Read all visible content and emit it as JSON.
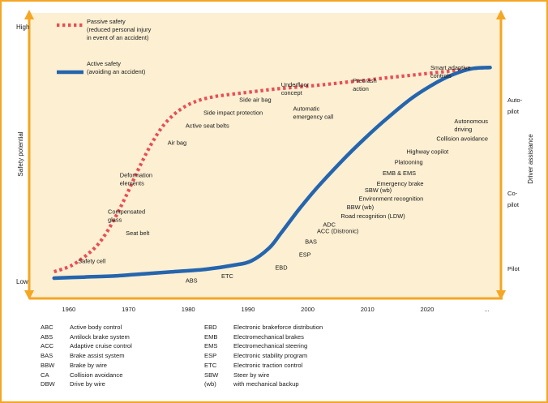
{
  "colors": {
    "frame": "#f5a623",
    "plot_background": "#fcefd2",
    "passive_series": "#e94e55",
    "active_series": "#2565ae",
    "axis_arrow": "#f5a623",
    "text": "#1a1a1a"
  },
  "chart_data": {
    "type": "line",
    "title": "",
    "xlabel": "",
    "ylabel": "Safety potential",
    "y_ticks": [
      "High",
      "Low"
    ],
    "right_axis_label": "Driver assistance",
    "right_axis_ticks": [
      "Autopilot",
      "Co-pilot",
      "Pilot"
    ],
    "x_ticks": [
      "1960",
      "1970",
      "1980",
      "1990",
      "2000",
      "2010",
      "2020",
      "..."
    ],
    "xlim": [
      1955,
      2031
    ],
    "ylim": [
      0,
      100
    ],
    "grid": false,
    "legend_position": "top-left",
    "series": [
      {
        "name": "Passive safety (reduced personal injury in event of an accident)",
        "legend_lines": [
          "Passive safety",
          "(reduced personal injury",
          "in event of an accident)"
        ],
        "style": "dotted",
        "color": "#e94e55",
        "x": [
          1957,
          1960,
          1963,
          1965,
          1967,
          1969,
          1971,
          1973,
          1975,
          1977,
          1979,
          1981,
          1983,
          1985,
          1988,
          1991,
          1994,
          1998,
          2002,
          2007,
          2012,
          2017,
          2022,
          2027,
          2030
        ],
        "y": [
          3,
          6,
          12,
          18,
          27,
          38,
          50,
          61,
          70,
          76,
          80,
          82.5,
          84,
          85,
          86,
          87,
          88,
          89,
          90,
          91.5,
          93,
          94.5,
          96,
          97.5,
          98
        ]
      },
      {
        "name": "Active safety (avoiding an accident)",
        "legend_lines": [
          "Active safety",
          "(avoiding an accident)"
        ],
        "style": "solid",
        "color": "#2565ae",
        "x": [
          1957,
          1962,
          1967,
          1972,
          1977,
          1982,
          1987,
          1990,
          1993,
          1995,
          1998,
          2001,
          2005,
          2009,
          2013,
          2017,
          2021,
          2024,
          2027,
          2030
        ],
        "y": [
          0,
          0.5,
          1,
          2,
          3,
          4,
          6,
          8,
          14,
          21,
          32,
          42,
          54,
          65,
          75,
          84,
          91,
          95,
          97.5,
          98
        ]
      }
    ],
    "annotations_passive": [
      {
        "text": [
          "Safety cell"
        ],
        "x": 1961,
        "y": 7
      },
      {
        "text": [
          "Seat belt"
        ],
        "x": 1969,
        "y": 20
      },
      {
        "text": [
          "Compensated",
          "glass"
        ],
        "x": 1966,
        "y": 30
      },
      {
        "text": [
          "Deformation",
          "elements"
        ],
        "x": 1968,
        "y": 47
      },
      {
        "text": [
          "Air bag"
        ],
        "x": 1976,
        "y": 62
      },
      {
        "text": [
          "Active seat belts"
        ],
        "x": 1979,
        "y": 70
      },
      {
        "text": [
          "Side impact protection"
        ],
        "x": 1982,
        "y": 76
      },
      {
        "text": [
          "Side air bag"
        ],
        "x": 1988,
        "y": 82
      },
      {
        "text": [
          "Underfloor",
          "concept"
        ],
        "x": 1995,
        "y": 89
      },
      {
        "text": [
          "Precrash",
          "action"
        ],
        "x": 2007,
        "y": 91
      },
      {
        "text": [
          "Smart adaptive",
          "controls"
        ],
        "x": 2020,
        "y": 97
      }
    ],
    "annotations_active": [
      {
        "text": [
          "ABS"
        ],
        "x": 1979,
        "y": -2
      },
      {
        "text": [
          "ETC"
        ],
        "x": 1985,
        "y": 0
      },
      {
        "text": [
          "EBD"
        ],
        "x": 1994,
        "y": 4
      },
      {
        "text": [
          "ESP"
        ],
        "x": 1998,
        "y": 10
      },
      {
        "text": [
          "BAS"
        ],
        "x": 1999,
        "y": 16
      },
      {
        "text": [
          "ACC (Distronic)"
        ],
        "x": 2001,
        "y": 21
      },
      {
        "text": [
          "ADC"
        ],
        "x": 2002,
        "y": 24
      },
      {
        "text": [
          "Road recognition (LDW)"
        ],
        "x": 2005,
        "y": 28
      },
      {
        "text": [
          "BBW (wb)"
        ],
        "x": 2006,
        "y": 32
      },
      {
        "text": [
          "Environment recognition"
        ],
        "x": 2008,
        "y": 36
      },
      {
        "text": [
          "SBW (wb)"
        ],
        "x": 2009,
        "y": 40
      },
      {
        "text": [
          "Emergency brake"
        ],
        "x": 2011,
        "y": 43
      },
      {
        "text": [
          "EMB & EMS"
        ],
        "x": 2012,
        "y": 48
      },
      {
        "text": [
          "Platooning"
        ],
        "x": 2014,
        "y": 53
      },
      {
        "text": [
          "Highway copilot"
        ],
        "x": 2016,
        "y": 58
      },
      {
        "text": [
          "Collision avoidance"
        ],
        "x": 2021,
        "y": 64
      },
      {
        "text": [
          "Autonomous",
          "driving"
        ],
        "x": 2024,
        "y": 72
      }
    ],
    "annotations_middle": [
      {
        "text": [
          "Automatic",
          "emergency call"
        ],
        "x": 1997,
        "y": 78
      }
    ]
  },
  "abbreviations_left": [
    {
      "key": "ABC",
      "value": "Active body control"
    },
    {
      "key": "ABS",
      "value": "Antilock brake system"
    },
    {
      "key": "ACC",
      "value": "Adaptive cruise control"
    },
    {
      "key": "BAS",
      "value": "Brake assist system"
    },
    {
      "key": "BBW",
      "value": "Brake by wire"
    },
    {
      "key": "CA",
      "value": "Collision avoidance"
    },
    {
      "key": "DBW",
      "value": "Drive by wire"
    }
  ],
  "abbreviations_right": [
    {
      "key": "EBD",
      "value": "Electronic brakeforce distribution"
    },
    {
      "key": "EMB",
      "value": "Electromechanical brakes"
    },
    {
      "key": "EMS",
      "value": "Electromechanical steering"
    },
    {
      "key": "ESP",
      "value": "Electronic stability program"
    },
    {
      "key": "ETC",
      "value": "Electronic traction control"
    },
    {
      "key": "SBW",
      "value": "Steer by wire"
    },
    {
      "key": "(wb)",
      "value": "with mechanical backup"
    }
  ]
}
